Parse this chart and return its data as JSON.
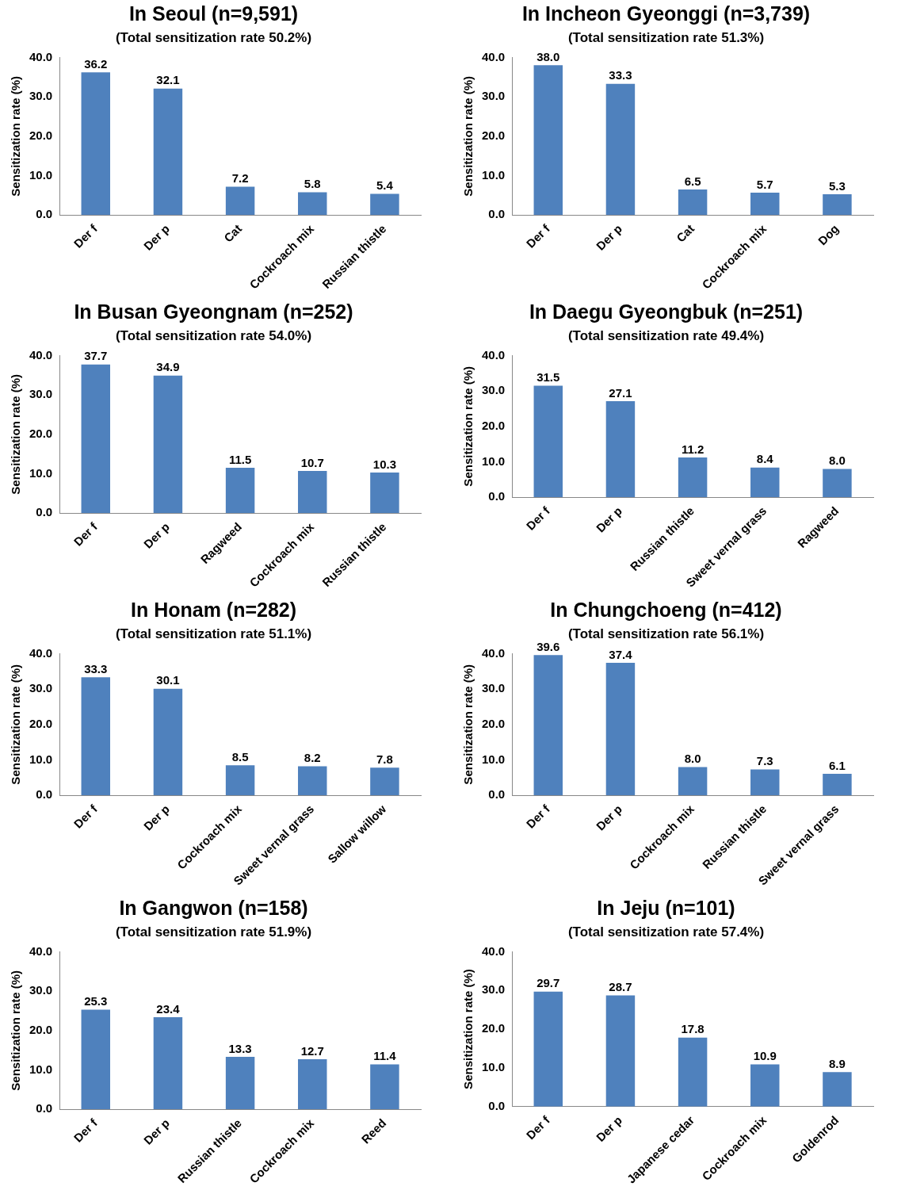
{
  "chart_data": [
    {
      "type": "bar",
      "title": "In Seoul (n=9,591)",
      "subtitle": "(Total sensitization rate 50.2%)",
      "ylabel": "Sensitization rate (%)",
      "categories": [
        "Der f",
        "Der p",
        "Cat",
        "Cockroach mix",
        "Russian thistle"
      ],
      "values": [
        36.2,
        32.1,
        7.2,
        5.8,
        5.4
      ],
      "value_labels": [
        "36.2",
        "32.1",
        "7.2",
        "5.8",
        "5.4"
      ],
      "color": "#4f81bd",
      "ylim": [
        0,
        40
      ],
      "yticks": [
        {
          "value": 0,
          "label": "0.0"
        },
        {
          "value": 10,
          "label": "10.0"
        },
        {
          "value": 20,
          "label": "20.0"
        },
        {
          "value": 30,
          "label": "30.0"
        },
        {
          "value": 40,
          "label": "40.0"
        }
      ],
      "grid": false,
      "legend": false
    },
    {
      "type": "bar",
      "title": "In Incheon Gyeonggi (n=3,739)",
      "subtitle": "(Total sensitization rate 51.3%)",
      "ylabel": "Sensitization rate (%)",
      "categories": [
        "Der f",
        "Der p",
        "Cat",
        "Cockroach mix",
        "Dog"
      ],
      "values": [
        38.0,
        33.3,
        6.5,
        5.7,
        5.3
      ],
      "value_labels": [
        "38.0",
        "33.3",
        "6.5",
        "5.7",
        "5.3"
      ],
      "color": "#4f81bd",
      "ylim": [
        0,
        40
      ],
      "yticks": [
        {
          "value": 0,
          "label": "0.0"
        },
        {
          "value": 10,
          "label": "10.0"
        },
        {
          "value": 20,
          "label": "20.0"
        },
        {
          "value": 30,
          "label": "30.0"
        },
        {
          "value": 40,
          "label": "40.0"
        }
      ],
      "grid": false,
      "legend": false
    },
    {
      "type": "bar",
      "title": "In Busan Gyeongnam (n=252)",
      "subtitle": "(Total sensitization rate 54.0%)",
      "ylabel": "Sensitization rate (%)",
      "categories": [
        "Der f",
        "Der p",
        "Ragweed",
        "Cockroach mix",
        "Russian thistle"
      ],
      "values": [
        37.7,
        34.9,
        11.5,
        10.7,
        10.3
      ],
      "value_labels": [
        "37.7",
        "34.9",
        "11.5",
        "10.7",
        "10.3"
      ],
      "color": "#4f81bd",
      "ylim": [
        0,
        40
      ],
      "yticks": [
        {
          "value": 0,
          "label": "0.0"
        },
        {
          "value": 10,
          "label": "10.0"
        },
        {
          "value": 20,
          "label": "20.0"
        },
        {
          "value": 30,
          "label": "30.0"
        },
        {
          "value": 40,
          "label": "40.0"
        }
      ],
      "grid": false,
      "legend": false
    },
    {
      "type": "bar",
      "title": "In Daegu Gyeongbuk (n=251)",
      "subtitle": "(Total sensitization rate 49.4%)",
      "ylabel": "Sensitization rate (%)",
      "categories": [
        "Der f",
        "Der p",
        "Russian thistle",
        "Sweet vernal grass",
        "Ragweed"
      ],
      "values": [
        31.5,
        27.1,
        11.2,
        8.4,
        8.0
      ],
      "value_labels": [
        "31.5",
        "27.1",
        "11.2",
        "8.4",
        "8.0"
      ],
      "color": "#4f81bd",
      "ylim": [
        0,
        40
      ],
      "yticks": [
        {
          "value": 0,
          "label": "0.0"
        },
        {
          "value": 10,
          "label": "10.0"
        },
        {
          "value": 20,
          "label": "20.0"
        },
        {
          "value": 30,
          "label": "30.0"
        },
        {
          "value": 40,
          "label": "40.0"
        }
      ],
      "grid": false,
      "legend": false
    },
    {
      "type": "bar",
      "title": "In Honam (n=282)",
      "subtitle": "(Total sensitization rate 51.1%)",
      "ylabel": "Sensitization rate (%)",
      "categories": [
        "Der f",
        "Der p",
        "Cockroach mix",
        "Sweet vernal grass",
        "Sallow willow"
      ],
      "values": [
        33.3,
        30.1,
        8.5,
        8.2,
        7.8
      ],
      "value_labels": [
        "33.3",
        "30.1",
        "8.5",
        "8.2",
        "7.8"
      ],
      "color": "#4f81bd",
      "ylim": [
        0,
        40
      ],
      "yticks": [
        {
          "value": 0,
          "label": "0.0"
        },
        {
          "value": 10,
          "label": "10.0"
        },
        {
          "value": 20,
          "label": "20.0"
        },
        {
          "value": 30,
          "label": "30.0"
        },
        {
          "value": 40,
          "label": "40.0"
        }
      ],
      "grid": false,
      "legend": false
    },
    {
      "type": "bar",
      "title": "In Chungchoeng (n=412)",
      "subtitle": "(Total sensitization rate 56.1%)",
      "ylabel": "Sensitization rate (%)",
      "categories": [
        "Der f",
        "Der p",
        "Cockroach mix",
        "Russian thistle",
        "Sweet vernal grass"
      ],
      "values": [
        39.6,
        37.4,
        8.0,
        7.3,
        6.1
      ],
      "value_labels": [
        "39.6",
        "37.4",
        "8.0",
        "7.3",
        "6.1"
      ],
      "color": "#4f81bd",
      "ylim": [
        0,
        40
      ],
      "yticks": [
        {
          "value": 0,
          "label": "0.0"
        },
        {
          "value": 10,
          "label": "10.0"
        },
        {
          "value": 20,
          "label": "20.0"
        },
        {
          "value": 30,
          "label": "30.0"
        },
        {
          "value": 40,
          "label": "40.0"
        }
      ],
      "grid": false,
      "legend": false
    },
    {
      "type": "bar",
      "title": "In Gangwon (n=158)",
      "subtitle": "(Total sensitization rate 51.9%)",
      "ylabel": "Sensitization rate (%)",
      "categories": [
        "Der f",
        "Der p",
        "Russian thistle",
        "Cockroach mix",
        "Reed"
      ],
      "values": [
        25.3,
        23.4,
        13.3,
        12.7,
        11.4
      ],
      "value_labels": [
        "25.3",
        "23.4",
        "13.3",
        "12.7",
        "11.4"
      ],
      "color": "#4f81bd",
      "ylim": [
        0,
        40
      ],
      "yticks": [
        {
          "value": 0,
          "label": "0.0"
        },
        {
          "value": 10,
          "label": "10.0"
        },
        {
          "value": 20,
          "label": "20.0"
        },
        {
          "value": 30,
          "label": "30.0"
        },
        {
          "value": 40,
          "label": "40.0"
        }
      ],
      "grid": false,
      "legend": false
    },
    {
      "type": "bar",
      "title": "In Jeju (n=101)",
      "subtitle": "(Total sensitization rate 57.4%)",
      "ylabel": "Sensitization rate (%)",
      "categories": [
        "Der f",
        "Der p",
        "Japanese cedar",
        "Cockroach mix",
        "Goldenrod"
      ],
      "values": [
        29.7,
        28.7,
        17.8,
        10.9,
        8.9
      ],
      "value_labels": [
        "29.7",
        "28.7",
        "17.8",
        "10.9",
        "8.9"
      ],
      "color": "#4f81bd",
      "ylim": [
        0,
        40
      ],
      "yticks": [
        {
          "value": 0,
          "label": "0.0"
        },
        {
          "value": 10,
          "label": "10.0"
        },
        {
          "value": 20,
          "label": "20.0"
        },
        {
          "value": 30,
          "label": "30.0"
        },
        {
          "value": 40,
          "label": "40.0"
        }
      ],
      "grid": false,
      "legend": false
    }
  ]
}
